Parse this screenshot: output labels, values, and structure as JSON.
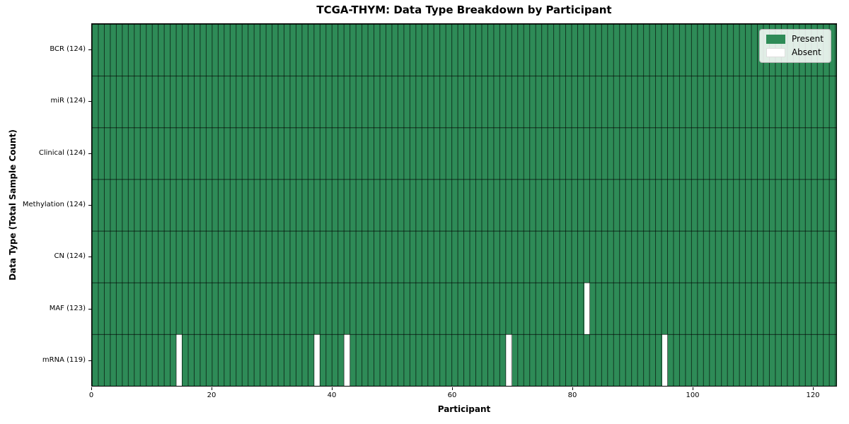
{
  "colors": {
    "present": "#2e8b57",
    "absent": "#ffffff",
    "plot_border": "#000000",
    "legend_border": "#b3b3b3",
    "legend_background": "rgba(255,255,255,0.85)"
  },
  "chart_data": {
    "type": "heatmap",
    "title": "TCGA-THYM: Data Type Breakdown by Participant",
    "xlabel": "Participant",
    "ylabel": "Data Type (Total Sample Count)",
    "x_range": [
      0,
      124
    ],
    "x_ticks": [
      0,
      20,
      40,
      60,
      80,
      100,
      120
    ],
    "n_participants": 124,
    "n_rows": 7,
    "grid": true,
    "legend_position": "upper right",
    "legend": [
      {
        "label": "Present",
        "color": "#2e8b57"
      },
      {
        "label": "Absent",
        "color": "#ffffff"
      }
    ],
    "rows": [
      {
        "label": "BCR (124)",
        "data_type": "BCR",
        "present_count": 124,
        "absent_participants": []
      },
      {
        "label": "miR (124)",
        "data_type": "miR",
        "present_count": 124,
        "absent_participants": []
      },
      {
        "label": "Clinical (124)",
        "data_type": "Clinical",
        "present_count": 124,
        "absent_participants": []
      },
      {
        "label": "Methylation (124)",
        "data_type": "Methylation",
        "present_count": 124,
        "absent_participants": []
      },
      {
        "label": "CN (124)",
        "data_type": "CN",
        "present_count": 124,
        "absent_participants": []
      },
      {
        "label": "MAF (123)",
        "data_type": "MAF",
        "present_count": 123,
        "absent_participants": [
          82
        ]
      },
      {
        "label": "mRNA (119)",
        "data_type": "mRNA",
        "present_count": 119,
        "absent_participants": [
          14,
          37,
          42,
          69,
          95
        ]
      }
    ]
  }
}
